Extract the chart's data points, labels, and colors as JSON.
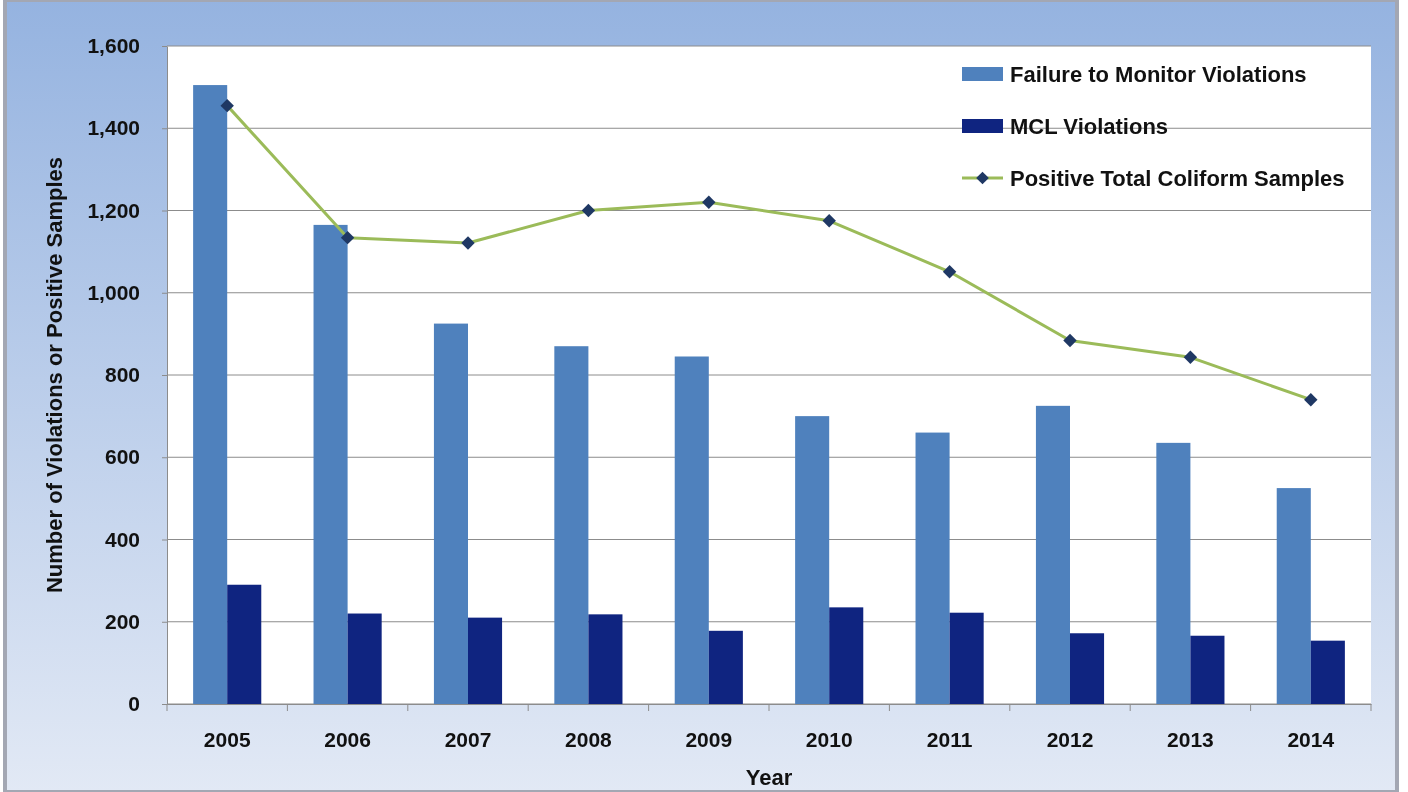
{
  "chart_data": {
    "type": "bar",
    "xlabel": "Year",
    "ylabel": "Number of Violations or Positive Samples",
    "categories": [
      "2005",
      "2006",
      "2007",
      "2008",
      "2009",
      "2010",
      "2011",
      "2012",
      "2013",
      "2014"
    ],
    "series": [
      {
        "name": "Failure to Monitor Violations",
        "color": "#4f81bd",
        "values": [
          1505,
          1165,
          925,
          870,
          845,
          700,
          660,
          725,
          635,
          525
        ]
      },
      {
        "name": "MCL Violations",
        "color": "#0f2480",
        "values": [
          290,
          220,
          210,
          218,
          178,
          235,
          222,
          172,
          166,
          154
        ]
      },
      {
        "name": "Positive Total Coliform Samples",
        "type": "line",
        "color": "#9bbb59",
        "colors": [
          "#1f3864",
          "#1f3864",
          "#1f3864",
          "#1f3864",
          "#1f3864",
          "#1f3864",
          "#1f3864",
          "#1f3864",
          "#1f3864",
          "#1f3864"
        ],
        "values": [
          1455,
          1134,
          1121,
          1200,
          1220,
          1175,
          1051,
          884,
          843,
          740
        ]
      }
    ],
    "ylim": [
      0,
      1600
    ],
    "yticks": [
      0,
      200,
      400,
      600,
      800,
      {
        "value": 1000,
        "label": "1,000"
      },
      {
        "value": 1200,
        "label": "1,200"
      },
      {
        "value": 1400,
        "label": "1,400"
      },
      {
        "value": 1600,
        "label": "1,600"
      }
    ],
    "grid": "y",
    "legend": "top right",
    "marker": "diamond"
  }
}
